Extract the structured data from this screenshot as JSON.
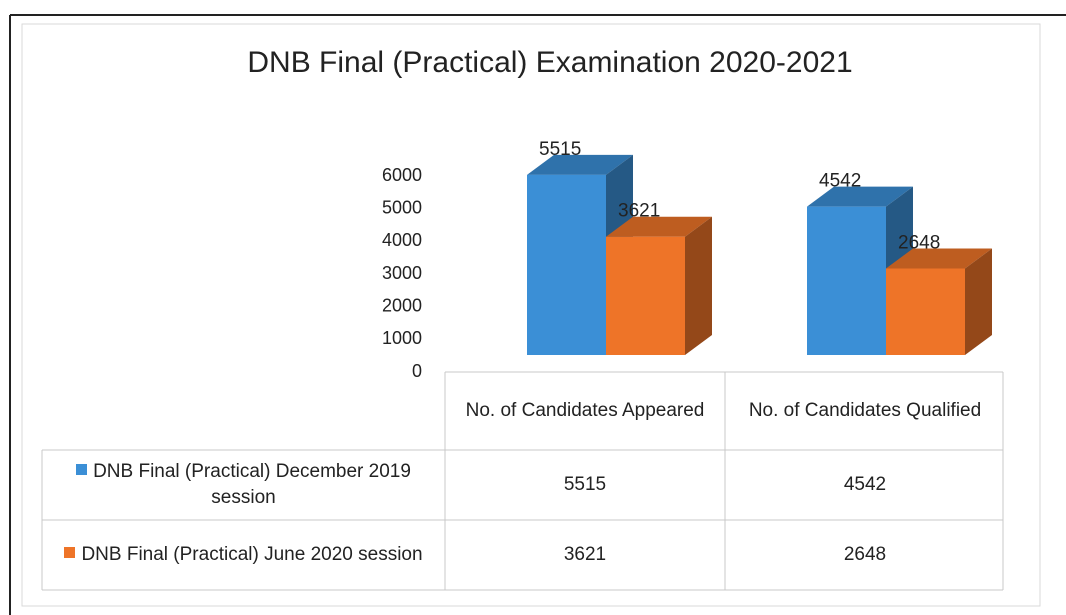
{
  "chart_data": {
    "type": "bar3d",
    "title": "DNB Final (Practical) Examination 2020-2021",
    "categories": [
      "No. of Candidates Appeared",
      "No. of Candidates Qualified"
    ],
    "series": [
      {
        "name": "DNB Final (Practical) December 2019 session",
        "color": "#3b8fd6",
        "values": [
          5515,
          4542
        ]
      },
      {
        "name": "DNB Final (Practical) June 2020 session",
        "color": "#ee7428",
        "values": [
          3621,
          2648
        ]
      }
    ],
    "ylim": [
      0,
      6000
    ],
    "yticks": [
      0,
      1000,
      2000,
      3000,
      4000,
      5000,
      6000
    ]
  }
}
